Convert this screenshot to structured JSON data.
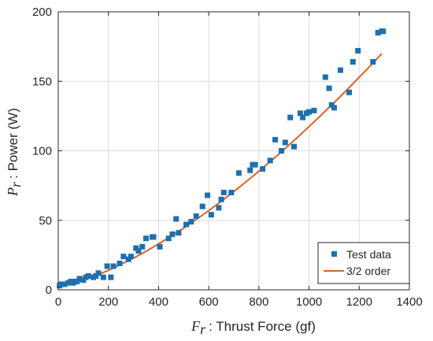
{
  "chart_data": {
    "type": "scatter",
    "xlabel_symbol": "F",
    "xlabel_subscript": "r",
    "xlabel_text": ": Thrust Force (gf)",
    "ylabel_symbol": "P",
    "ylabel_subscript": "r",
    "ylabel_text": ": Power (W)",
    "xlim": [
      0,
      1400
    ],
    "ylim": [
      0,
      200
    ],
    "xticks": [
      0,
      200,
      400,
      600,
      800,
      1000,
      1200,
      1400
    ],
    "yticks": [
      0,
      50,
      100,
      150,
      200
    ],
    "grid": true,
    "legend_position": "bottom-right",
    "colors": {
      "marker": "#1f6fae",
      "fit_line": "#d9622b"
    },
    "series": [
      {
        "name": "Test data",
        "kind": "scatter",
        "x": [
          5,
          12,
          25,
          40,
          50,
          60,
          70,
          75,
          85,
          100,
          110,
          120,
          140,
          150,
          160,
          180,
          195,
          210,
          220,
          245,
          260,
          280,
          290,
          310,
          320,
          335,
          350,
          375,
          380,
          405,
          440,
          455,
          470,
          480,
          510,
          530,
          550,
          575,
          595,
          610,
          640,
          650,
          660,
          690,
          720,
          765,
          775,
          785,
          815,
          845,
          865,
          890,
          905,
          925,
          940,
          965,
          975,
          990,
          1000,
          1020,
          1065,
          1080,
          1090,
          1100,
          1125,
          1160,
          1175,
          1195,
          1255,
          1275,
          1290,
          1295
        ],
        "y": [
          3,
          4,
          4,
          5,
          6,
          5,
          6,
          6,
          8,
          7,
          9,
          10,
          9,
          10,
          12,
          9,
          17,
          9,
          17,
          19,
          24,
          22,
          24,
          30,
          28,
          31,
          37,
          38,
          38,
          31,
          37,
          40,
          51,
          41,
          47,
          49,
          53,
          60,
          68,
          54,
          59,
          65,
          70,
          70,
          84,
          86,
          90,
          90,
          87,
          93,
          108,
          100,
          106,
          124,
          103,
          127,
          124,
          127,
          128,
          129,
          153,
          145,
          133,
          131,
          158,
          142,
          164,
          172,
          164,
          185,
          186,
          186
        ]
      },
      {
        "name": "3/2 order",
        "kind": "line",
        "x": [
          0,
          50,
          100,
          150,
          200,
          250,
          300,
          350,
          400,
          450,
          500,
          550,
          600,
          650,
          700,
          750,
          800,
          850,
          900,
          950,
          1000,
          1050,
          1100,
          1150,
          1200,
          1250,
          1290
        ],
        "y": [
          3,
          4.4,
          7,
          10.3,
          14,
          18.3,
          22.8,
          27.7,
          33,
          38.6,
          44.4,
          50.6,
          57,
          63.7,
          70.7,
          77.9,
          85.3,
          93,
          100.9,
          109,
          117.4,
          126,
          134.7,
          143.7,
          152.9,
          162.2,
          169.9
        ]
      }
    ]
  }
}
